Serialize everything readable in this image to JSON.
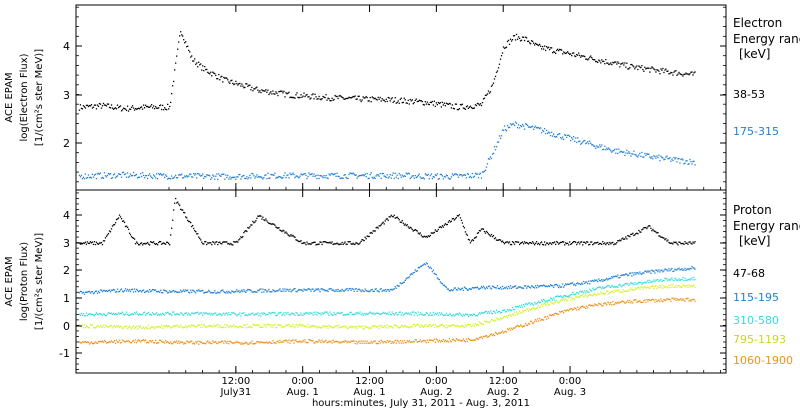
{
  "chart_data": [
    {
      "type": "scatter",
      "panel": "electron",
      "ylabel_lines": [
        "ACE EPAM",
        "log(Electron Flux)",
        "[1/(cm²s ster MeV)]"
      ],
      "yticks": [
        "2",
        "3",
        "4"
      ],
      "ylim": [
        1.2,
        4.8
      ],
      "xlim_hours": [
        -16.7,
        100
      ],
      "legend_title_lines": [
        "Electron",
        "Energy range",
        "[keV]"
      ],
      "series": [
        {
          "name": "38-53",
          "color": "#000000",
          "x": [
            -16,
            -12,
            -8,
            -4,
            0,
            2,
            4,
            6,
            10,
            16,
            22,
            28,
            34,
            40,
            46,
            52,
            56,
            58,
            60,
            62,
            64,
            66,
            70,
            76,
            82,
            88,
            94
          ],
          "y": [
            2.75,
            2.78,
            2.72,
            2.75,
            2.75,
            4.35,
            3.75,
            3.55,
            3.3,
            3.1,
            3.0,
            2.95,
            2.92,
            2.9,
            2.85,
            2.75,
            2.8,
            3.2,
            4.0,
            4.2,
            4.15,
            4.0,
            3.9,
            3.75,
            3.6,
            3.5,
            3.42
          ]
        },
        {
          "name": "175-315",
          "color": "#1e7fd8",
          "x": [
            -16,
            -8,
            0,
            10,
            20,
            30,
            40,
            50,
            56,
            58,
            60,
            62,
            66,
            72,
            80,
            88,
            94
          ],
          "y": [
            1.33,
            1.35,
            1.33,
            1.32,
            1.34,
            1.34,
            1.34,
            1.32,
            1.35,
            1.8,
            2.3,
            2.4,
            2.3,
            2.1,
            1.85,
            1.7,
            1.62
          ]
        }
      ]
    },
    {
      "type": "scatter",
      "panel": "proton",
      "ylabel_lines": [
        "ACE EPAM",
        "log(Proton Flux)",
        "[1/(cm²s ster MeV)]"
      ],
      "yticks": [
        "-1",
        "0",
        "1",
        "2",
        "3",
        "4"
      ],
      "ylim": [
        -1.6,
        4.8
      ],
      "xlim_hours": [
        -16.7,
        100
      ],
      "legend_title_lines": [
        "Proton",
        "Energy range",
        "[keV]"
      ],
      "series": [
        {
          "name": "47-68",
          "color": "#000000",
          "x": [
            -16,
            -12,
            -9,
            -6,
            0,
            1,
            6,
            12,
            16,
            24,
            30,
            34,
            40,
            46,
            52,
            54,
            56,
            60,
            70,
            80,
            86,
            90,
            94
          ],
          "y": [
            3.0,
            3.0,
            4.0,
            3.0,
            3.0,
            4.6,
            3.0,
            3.0,
            4.0,
            3.0,
            3.0,
            3.0,
            4.0,
            3.2,
            4.0,
            3.0,
            3.5,
            3.0,
            3.0,
            3.0,
            3.6,
            3.0,
            3.0
          ]
        },
        {
          "name": "115-195",
          "color": "#1e7fd8",
          "x": [
            -16,
            -8,
            0,
            10,
            20,
            30,
            40,
            46,
            50,
            56,
            62,
            70,
            76,
            82,
            88,
            94
          ],
          "y": [
            1.2,
            1.3,
            1.25,
            1.25,
            1.3,
            1.3,
            1.3,
            2.3,
            1.3,
            1.4,
            1.4,
            1.45,
            1.6,
            1.85,
            2.0,
            2.1
          ]
        },
        {
          "name": "310-580",
          "color": "#33dcdc",
          "x": [
            -16,
            -6,
            4,
            14,
            24,
            34,
            44,
            54,
            60,
            66,
            72,
            78,
            84,
            90,
            94
          ],
          "y": [
            0.42,
            0.45,
            0.45,
            0.42,
            0.45,
            0.45,
            0.45,
            0.4,
            0.55,
            0.85,
            1.15,
            1.4,
            1.55,
            1.7,
            1.72
          ]
        },
        {
          "name": "795-1193",
          "color": "#d4f22a",
          "x": [
            -16,
            -6,
            4,
            14,
            24,
            34,
            44,
            54,
            60,
            66,
            72,
            78,
            84,
            90,
            94
          ],
          "y": [
            0.0,
            -0.05,
            0.0,
            0.0,
            0.0,
            -0.05,
            0.0,
            0.0,
            0.3,
            0.7,
            1.0,
            1.2,
            1.35,
            1.45,
            1.45
          ]
        },
        {
          "name": "1060-1900",
          "color": "#f09018",
          "x": [
            -16,
            -6,
            4,
            14,
            24,
            34,
            44,
            54,
            60,
            66,
            72,
            78,
            84,
            90,
            94
          ],
          "y": [
            -0.6,
            -0.55,
            -0.6,
            -0.6,
            -0.55,
            -0.6,
            -0.55,
            -0.5,
            -0.2,
            0.2,
            0.6,
            0.8,
            0.9,
            0.95,
            0.95
          ]
        }
      ]
    }
  ],
  "x_axis": {
    "ticks": [
      {
        "hour": 12,
        "line1": "12:00",
        "line2": "July31"
      },
      {
        "hour": 24,
        "line1": "0:00",
        "line2": "Aug. 1"
      },
      {
        "hour": 36,
        "line1": "12:00",
        "line2": "Aug. 1"
      },
      {
        "hour": 48,
        "line1": "0:00",
        "line2": "Aug. 2"
      },
      {
        "hour": 60,
        "line1": "12:00",
        "line2": "Aug. 2"
      },
      {
        "hour": 72,
        "line1": "0:00",
        "line2": "Aug. 3"
      }
    ],
    "label": "hours:minutes, July 31, 2011 - Aug.  3, 2011"
  }
}
